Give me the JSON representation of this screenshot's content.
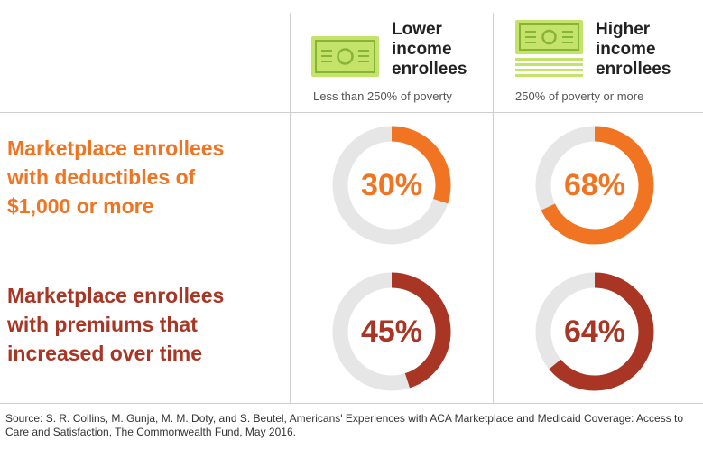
{
  "colors": {
    "orange": "#f07421",
    "red": "#a93525",
    "track": "#e6e6e6",
    "money_green": "#c5e26a",
    "money_dark": "#86b534"
  },
  "columns": [
    {
      "title_lines": [
        "Lower",
        "income",
        "enrollees"
      ],
      "subtitle": "Less than 250% of poverty",
      "icon": "money-bill-icon"
    },
    {
      "title_lines": [
        "Higher",
        "income",
        "enrollees"
      ],
      "subtitle": "250% of poverty or more",
      "icon": "money-stack-icon"
    }
  ],
  "rows": [
    {
      "label_lines": [
        "Marketplace enrollees",
        "with deductibles of",
        "$1,000 or more"
      ],
      "color": "#f07421"
    },
    {
      "label_lines": [
        "Marketplace enrollees",
        "with premiums that",
        "increased over time"
      ],
      "color": "#a93525"
    }
  ],
  "chart_data": {
    "type": "pie",
    "categories": [
      "Lower income enrollees",
      "Higher income enrollees"
    ],
    "series": [
      {
        "name": "Marketplace enrollees with deductibles of $1,000 or more",
        "values": [
          30,
          68
        ],
        "labels": [
          "30%",
          "68%"
        ]
      },
      {
        "name": "Marketplace enrollees with premiums that increased over time",
        "values": [
          45,
          64
        ],
        "labels": [
          "45%",
          "64%"
        ]
      }
    ]
  },
  "source": "Source: S. R. Collins, M. Gunja, M. M. Doty, and S. Beutel, Americans' Experiences with ACA Marketplace and Medicaid Coverage: Access to Care and Satisfaction, The Commonwealth Fund, May 2016."
}
